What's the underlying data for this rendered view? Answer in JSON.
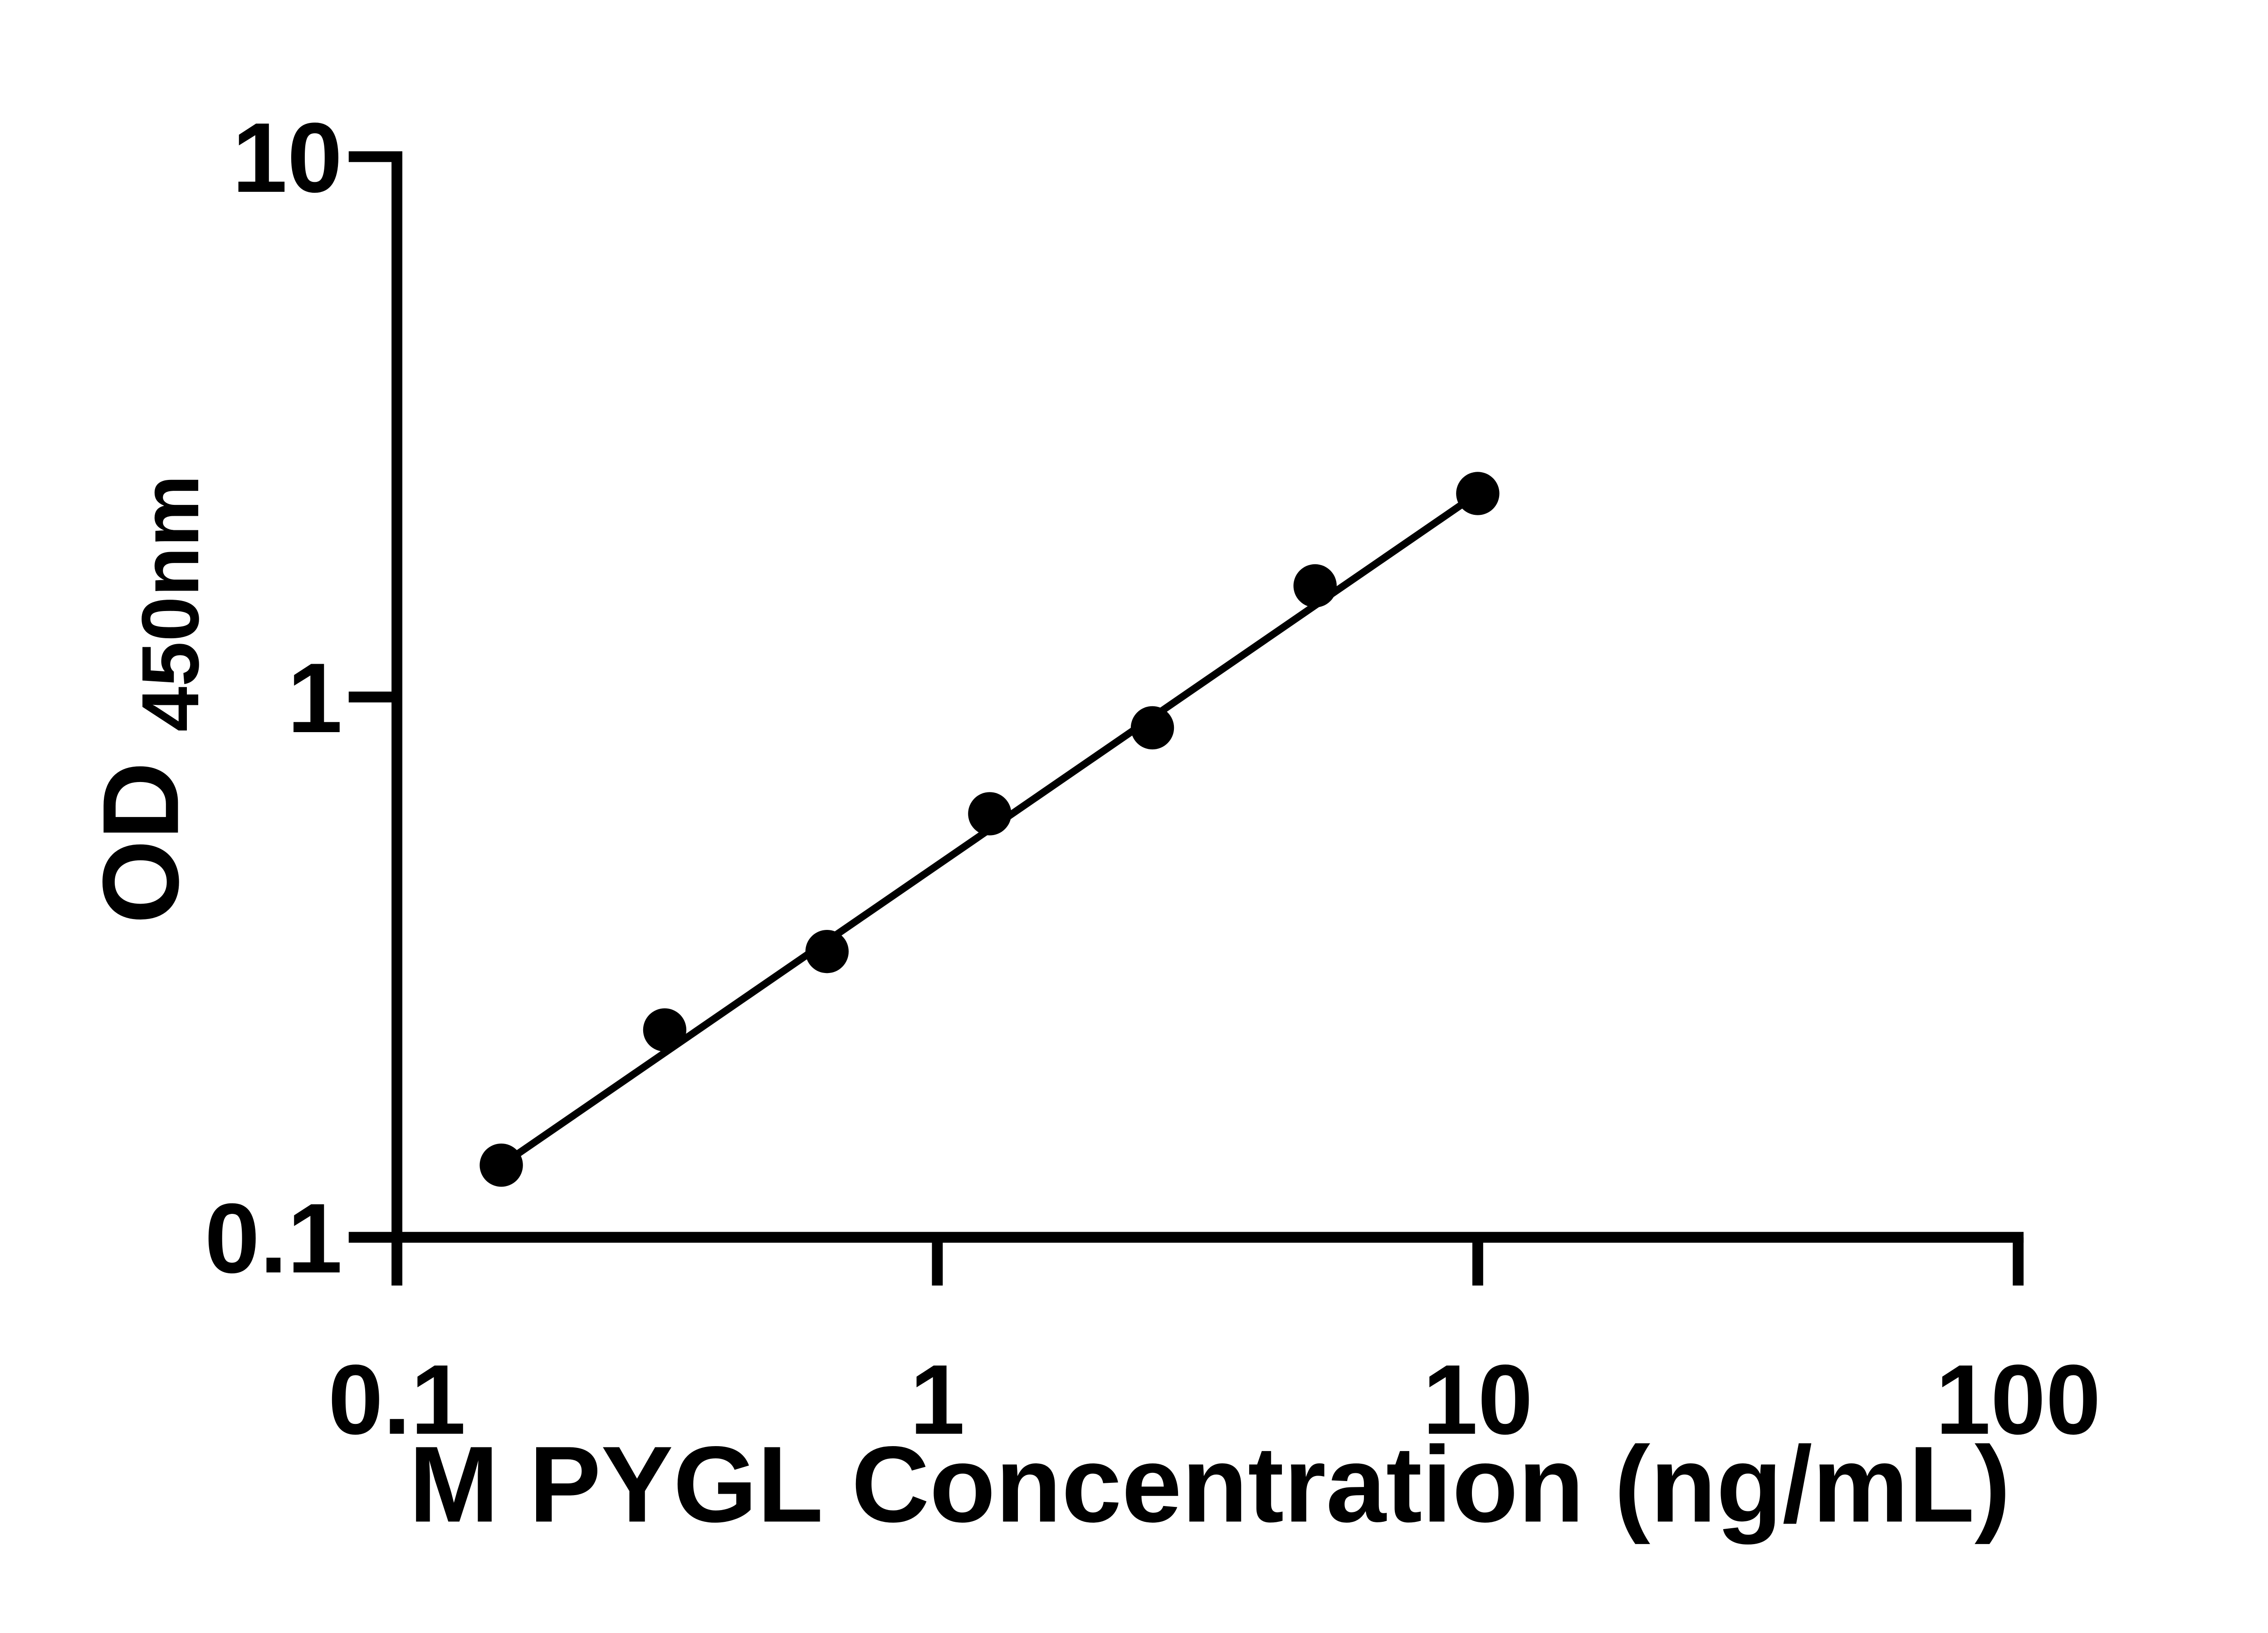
{
  "chart_data": {
    "type": "scatter",
    "title": "",
    "xlabel": "M PYGL Concentration (ng/mL)",
    "ylabel_main": "OD",
    "ylabel_sub": "450nm",
    "x_scale": "log",
    "y_scale": "log",
    "xlim": [
      0.1,
      100
    ],
    "ylim": [
      0.1,
      10
    ],
    "x_ticks": [
      {
        "value": 0.1,
        "label": "0.1"
      },
      {
        "value": 1,
        "label": "1"
      },
      {
        "value": 10,
        "label": "10"
      },
      {
        "value": 100,
        "label": "100"
      }
    ],
    "y_ticks": [
      {
        "value": 0.1,
        "label": "0.1"
      },
      {
        "value": 1,
        "label": "1"
      },
      {
        "value": 10,
        "label": "10"
      }
    ],
    "grid": false,
    "legend": false,
    "series": [
      {
        "name": "standard-curve",
        "marker": "filled-circle",
        "color": "#000000",
        "points": [
          {
            "x": 0.156,
            "y": 0.136
          },
          {
            "x": 0.313,
            "y": 0.242
          },
          {
            "x": 0.625,
            "y": 0.338
          },
          {
            "x": 1.25,
            "y": 0.608
          },
          {
            "x": 2.5,
            "y": 0.877
          },
          {
            "x": 5,
            "y": 1.606
          },
          {
            "x": 10,
            "y": 2.38
          }
        ]
      }
    ],
    "fit_line": {
      "type": "straight-in-loglog",
      "from": {
        "x": 0.156,
        "y": 0.136
      },
      "to": {
        "x": 10,
        "y": 2.38
      },
      "color": "#000000"
    },
    "colors": {
      "axis": "#000000",
      "background": "#ffffff"
    }
  }
}
